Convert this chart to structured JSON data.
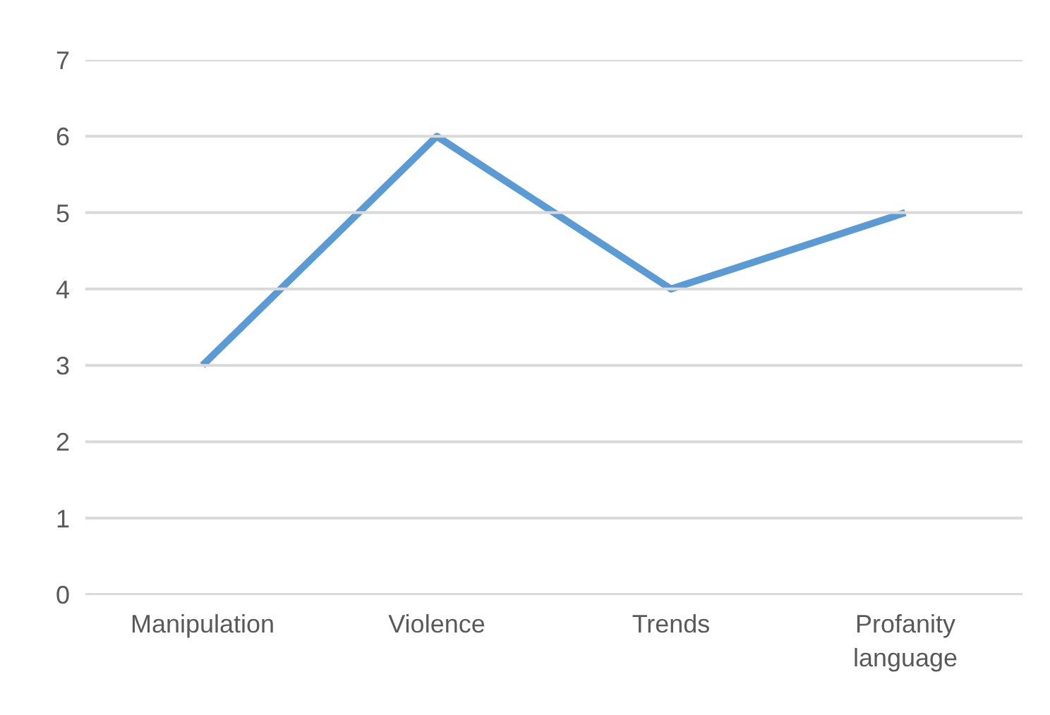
{
  "chart_data": {
    "type": "line",
    "categories": [
      "Manipulation",
      "Violence",
      "Trends",
      "Profanity language"
    ],
    "series": [
      {
        "color": "#5b9bd5",
        "values": [
          3,
          6,
          4,
          5
        ]
      }
    ],
    "ylim": [
      0,
      7
    ],
    "yticks": [
      0,
      1,
      2,
      3,
      4,
      5,
      6,
      7
    ],
    "grid": "y",
    "marker": "none",
    "line_style": "solid"
  }
}
